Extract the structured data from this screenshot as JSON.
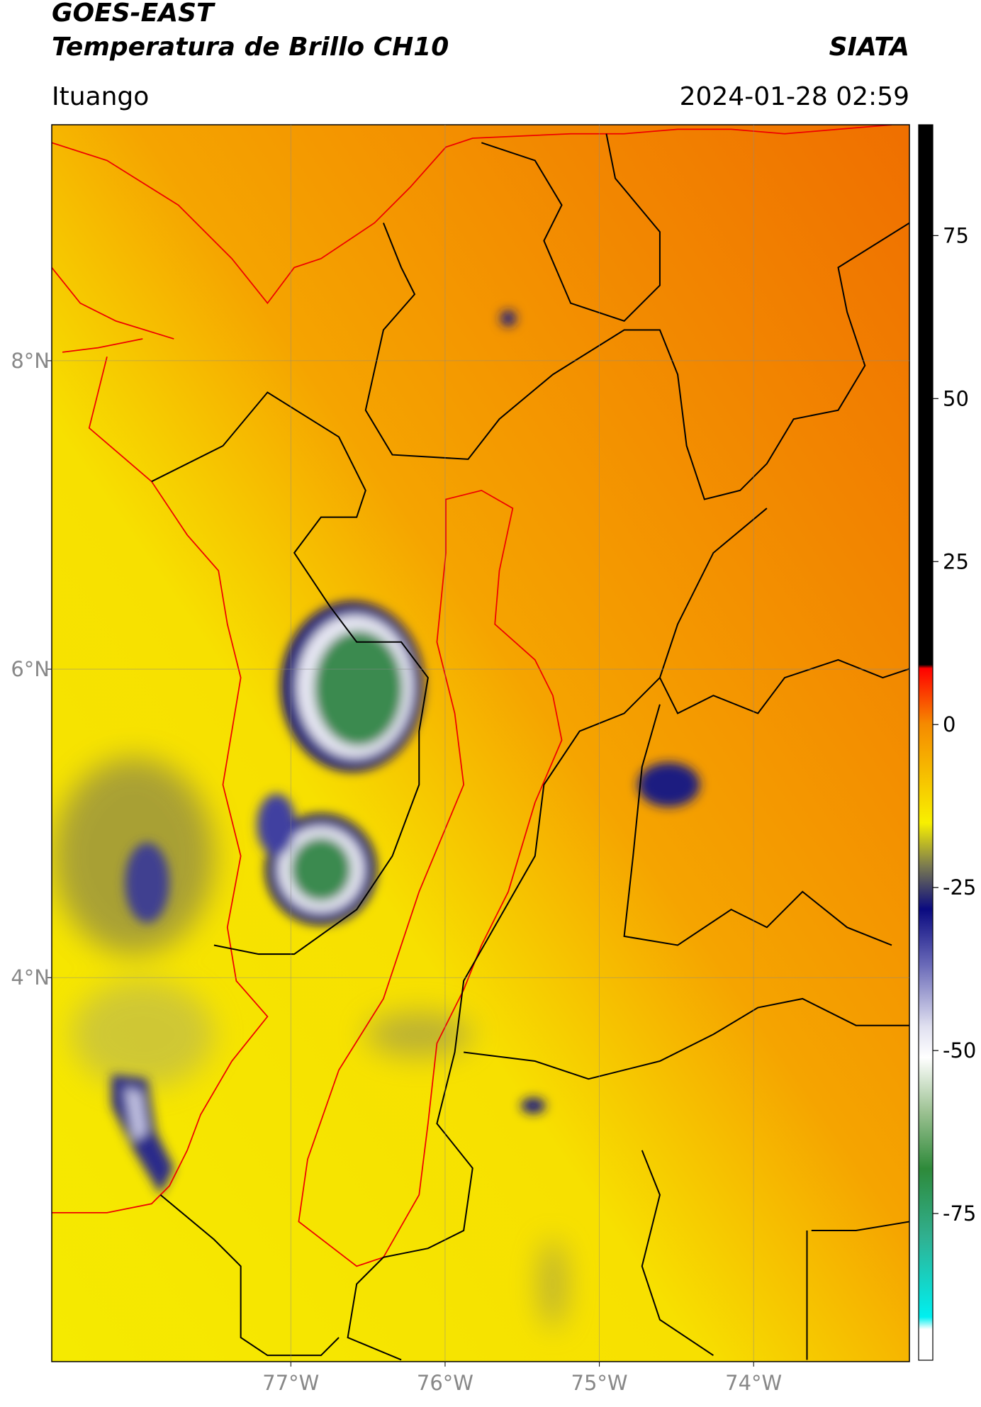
{
  "header": {
    "title": "GOES-EAST",
    "subtitle": "Temperatura de Brillo CH10",
    "source": "SIATA",
    "region": "Ituango",
    "datetime": "2024-01-28 02:59"
  },
  "map": {
    "xlim": [
      -78.55,
      -72.99
    ],
    "ylim": [
      1.51,
      9.53
    ],
    "xticks": [
      {
        "value": -77,
        "label": "77°W"
      },
      {
        "value": -76,
        "label": "76°W"
      },
      {
        "value": -75,
        "label": "75°W"
      },
      {
        "value": -74,
        "label": "74°W"
      }
    ],
    "yticks": [
      {
        "value": 8,
        "label": "8°N"
      },
      {
        "value": 6,
        "label": "6°N"
      },
      {
        "value": 4,
        "label": "4°N"
      }
    ],
    "grid": true
  },
  "colorbar": {
    "lim": [
      -97.5,
      92
    ],
    "ticks": [
      75,
      50,
      25,
      0,
      -25,
      -50,
      -75
    ]
  }
}
